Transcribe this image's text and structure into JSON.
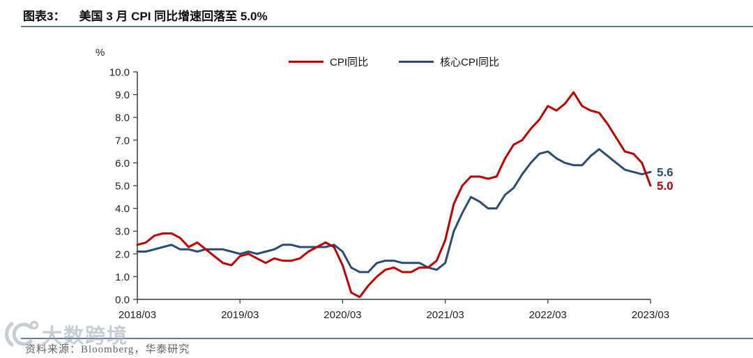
{
  "header": {
    "figure_label": "图表3：",
    "title": "美国 3 月 CPI 同比增速回落至 5.0%"
  },
  "chart_data": {
    "type": "line",
    "unit_label": "%",
    "ylim": [
      0,
      10
    ],
    "ytick_step": 1,
    "ytick_labels": [
      "0.0",
      "1.0",
      "2.0",
      "3.0",
      "4.0",
      "5.0",
      "6.0",
      "7.0",
      "8.0",
      "9.0",
      "10.0"
    ],
    "grid": false,
    "legend_position": "top-center",
    "x_ticks": [
      {
        "index": 0,
        "label": "2018/03"
      },
      {
        "index": 12,
        "label": "2019/03"
      },
      {
        "index": 24,
        "label": "2020/03"
      },
      {
        "index": 36,
        "label": "2021/03"
      },
      {
        "index": 48,
        "label": "2022/03"
      },
      {
        "index": 60,
        "label": "2023/03"
      }
    ],
    "categories": [
      "2018/03",
      "2018/04",
      "2018/05",
      "2018/06",
      "2018/07",
      "2018/08",
      "2018/09",
      "2018/10",
      "2018/11",
      "2018/12",
      "2019/01",
      "2019/02",
      "2019/03",
      "2019/04",
      "2019/05",
      "2019/06",
      "2019/07",
      "2019/08",
      "2019/09",
      "2019/10",
      "2019/11",
      "2019/12",
      "2020/01",
      "2020/02",
      "2020/03",
      "2020/04",
      "2020/05",
      "2020/06",
      "2020/07",
      "2020/08",
      "2020/09",
      "2020/10",
      "2020/11",
      "2020/12",
      "2021/01",
      "2021/02",
      "2021/03",
      "2021/04",
      "2021/05",
      "2021/06",
      "2021/07",
      "2021/08",
      "2021/09",
      "2021/10",
      "2021/11",
      "2021/12",
      "2022/01",
      "2022/02",
      "2022/03",
      "2022/04",
      "2022/05",
      "2022/06",
      "2022/07",
      "2022/08",
      "2022/09",
      "2022/10",
      "2022/11",
      "2022/12",
      "2023/01",
      "2023/02",
      "2023/03"
    ],
    "series": [
      {
        "name": "CPI同比",
        "color": "#c00000",
        "end_label": "5.0",
        "values": [
          2.4,
          2.5,
          2.8,
          2.9,
          2.9,
          2.7,
          2.3,
          2.5,
          2.2,
          1.9,
          1.6,
          1.5,
          1.9,
          2.0,
          1.8,
          1.6,
          1.8,
          1.7,
          1.7,
          1.8,
          2.1,
          2.3,
          2.5,
          2.3,
          1.5,
          0.3,
          0.1,
          0.6,
          1.0,
          1.3,
          1.4,
          1.2,
          1.2,
          1.4,
          1.4,
          1.7,
          2.6,
          4.2,
          5.0,
          5.4,
          5.4,
          5.3,
          5.4,
          6.2,
          6.8,
          7.0,
          7.5,
          7.9,
          8.5,
          8.3,
          8.6,
          9.1,
          8.5,
          8.3,
          8.2,
          7.7,
          7.1,
          6.5,
          6.4,
          6.0,
          5.0
        ]
      },
      {
        "name": "核心CPI同比",
        "color": "#2a4b78",
        "end_label": "5.6",
        "values": [
          2.1,
          2.1,
          2.2,
          2.3,
          2.4,
          2.2,
          2.2,
          2.1,
          2.2,
          2.2,
          2.2,
          2.1,
          2.0,
          2.1,
          2.0,
          2.1,
          2.2,
          2.4,
          2.4,
          2.3,
          2.3,
          2.3,
          2.3,
          2.4,
          2.1,
          1.4,
          1.2,
          1.2,
          1.6,
          1.7,
          1.7,
          1.6,
          1.6,
          1.6,
          1.4,
          1.3,
          1.6,
          3.0,
          3.8,
          4.5,
          4.3,
          4.0,
          4.0,
          4.6,
          4.9,
          5.5,
          6.0,
          6.4,
          6.5,
          6.2,
          6.0,
          5.9,
          5.9,
          6.3,
          6.6,
          6.3,
          6.0,
          5.7,
          5.6,
          5.5,
          5.6
        ]
      }
    ]
  },
  "footer": {
    "source": "资料来源：Bloomberg，华泰研究"
  },
  "watermark": {
    "text": "大数跨境"
  }
}
